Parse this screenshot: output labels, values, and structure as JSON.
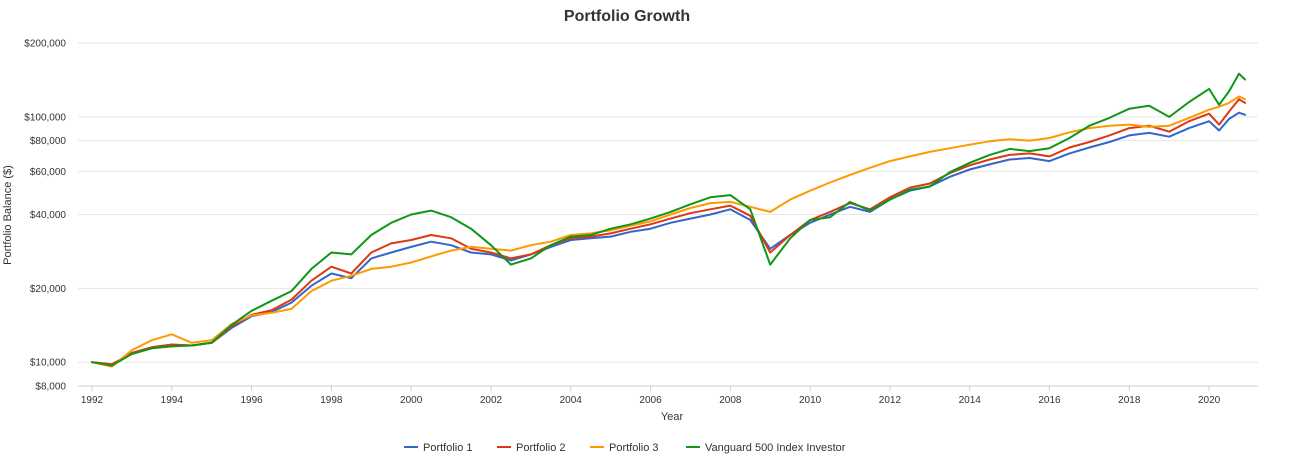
{
  "chart_data": {
    "type": "line",
    "title": "Portfolio Growth",
    "xlabel": "Year",
    "ylabel": "Portfolio Balance ($)",
    "y_scale": "log",
    "ylim": [
      8000,
      200000
    ],
    "xlim": [
      1992,
      2020.9
    ],
    "y_ticks": [
      {
        "value": 8000,
        "label": "$8,000"
      },
      {
        "value": 10000,
        "label": "$10,000"
      },
      {
        "value": 20000,
        "label": "$20,000"
      },
      {
        "value": 40000,
        "label": "$40,000"
      },
      {
        "value": 60000,
        "label": "$60,000"
      },
      {
        "value": 80000,
        "label": "$80,000"
      },
      {
        "value": 100000,
        "label": "$100,000"
      },
      {
        "value": 200000,
        "label": "$200,000"
      }
    ],
    "x_ticks": [
      "1992",
      "1994",
      "1996",
      "1998",
      "2000",
      "2002",
      "2004",
      "2006",
      "2008",
      "2010",
      "2012",
      "2014",
      "2016",
      "2018",
      "2020"
    ],
    "grid": "horizontal",
    "legend_position": "bottom",
    "x": [
      1992.0,
      1992.5,
      1993.0,
      1993.5,
      1994.0,
      1994.5,
      1995.0,
      1995.5,
      1996.0,
      1996.5,
      1997.0,
      1997.5,
      1998.0,
      1998.5,
      1999.0,
      1999.5,
      2000.0,
      2000.5,
      2001.0,
      2001.5,
      2002.0,
      2002.5,
      2003.0,
      2003.5,
      2004.0,
      2004.5,
      2005.0,
      2005.5,
      2006.0,
      2006.5,
      2007.0,
      2007.5,
      2008.0,
      2008.5,
      2009.0,
      2009.5,
      2010.0,
      2010.5,
      2011.0,
      2011.5,
      2012.0,
      2012.5,
      2013.0,
      2013.5,
      2014.0,
      2014.5,
      2015.0,
      2015.5,
      2016.0,
      2016.5,
      2017.0,
      2017.5,
      2018.0,
      2018.5,
      2019.0,
      2019.5,
      2020.0,
      2020.25,
      2020.5,
      2020.75,
      2020.9
    ],
    "series": [
      {
        "name": "Portfolio 1",
        "color": "#3366cc",
        "values": [
          10000,
          9800,
          10900,
          11500,
          11800,
          11700,
          12000,
          13800,
          15400,
          16000,
          17500,
          20500,
          23000,
          22000,
          26500,
          28000,
          29500,
          31000,
          30000,
          28000,
          27500,
          26000,
          27500,
          29500,
          31500,
          32000,
          32500,
          34000,
          35000,
          37000,
          38500,
          40000,
          42000,
          38000,
          29000,
          33000,
          37000,
          40000,
          43000,
          41000,
          46000,
          50000,
          52000,
          57000,
          61000,
          64000,
          67000,
          68000,
          66000,
          71000,
          75000,
          79000,
          84000,
          86000,
          83000,
          90000,
          96000,
          88000,
          98000,
          104000,
          102000
        ]
      },
      {
        "name": "Portfolio 2",
        "color": "#dc3912",
        "values": [
          10000,
          9800,
          10900,
          11500,
          11800,
          11700,
          12000,
          14000,
          15600,
          16300,
          18000,
          21500,
          24500,
          23000,
          28000,
          30500,
          31500,
          33000,
          32000,
          29000,
          28000,
          26500,
          27500,
          30000,
          32000,
          32500,
          33500,
          35000,
          36500,
          38500,
          40500,
          42000,
          43500,
          39500,
          28000,
          33000,
          38000,
          41000,
          44500,
          42000,
          47000,
          51500,
          53500,
          59000,
          63500,
          67000,
          70000,
          71000,
          69000,
          75000,
          79000,
          84000,
          90000,
          92000,
          87000,
          96000,
          103000,
          93000,
          105000,
          118000,
          114000
        ]
      },
      {
        "name": "Portfolio 3",
        "color": "#ff9900",
        "values": [
          10000,
          9600,
          11200,
          12300,
          13000,
          12000,
          12300,
          14300,
          15500,
          15900,
          16500,
          19500,
          21500,
          22500,
          24000,
          24500,
          25500,
          27000,
          28500,
          29500,
          29000,
          28500,
          30000,
          31000,
          33000,
          33500,
          34500,
          36000,
          37500,
          40000,
          42500,
          44500,
          45000,
          43000,
          41000,
          46000,
          50000,
          54000,
          58000,
          62000,
          66000,
          69000,
          72000,
          74500,
          77000,
          79500,
          81000,
          80000,
          82000,
          86500,
          90000,
          92000,
          93000,
          91000,
          92000,
          99000,
          107000,
          110000,
          114000,
          121000,
          118000
        ]
      },
      {
        "name": "Vanguard 500 Index Investor",
        "color": "#109618",
        "values": [
          10000,
          9700,
          10800,
          11400,
          11600,
          11700,
          12000,
          14200,
          16200,
          17800,
          19500,
          24000,
          28000,
          27500,
          33000,
          37000,
          40000,
          41500,
          39000,
          35000,
          30000,
          25000,
          26500,
          30000,
          32500,
          33000,
          35000,
          36500,
          38500,
          41000,
          44000,
          47000,
          48000,
          42000,
          25000,
          32000,
          38000,
          39000,
          45000,
          41500,
          46000,
          50500,
          52000,
          59500,
          65000,
          70000,
          74000,
          72500,
          74500,
          82000,
          92000,
          99000,
          108000,
          111000,
          100000,
          115000,
          130000,
          112000,
          127000,
          150000,
          142000
        ]
      }
    ]
  }
}
